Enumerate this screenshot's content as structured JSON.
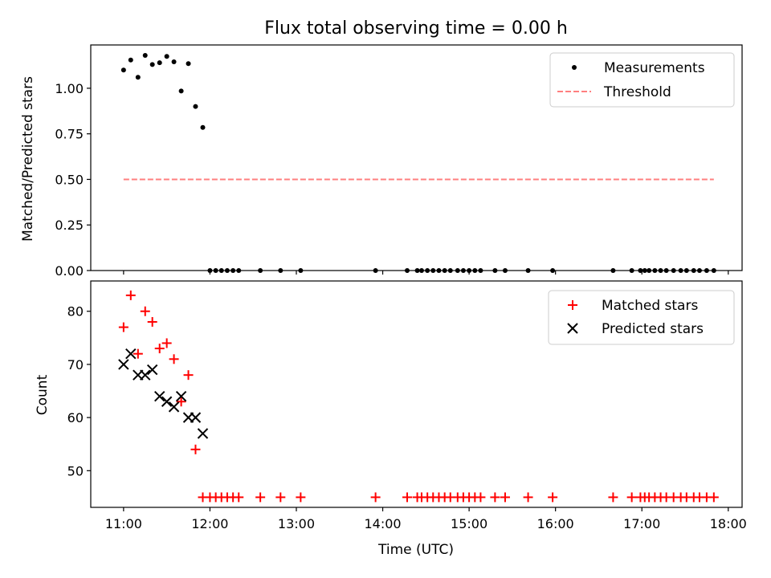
{
  "chart_data": [
    {
      "type": "scatter",
      "title": "Flux total observing time = 0.00 h",
      "ylabel": "Matched/Predicted stars",
      "xlabel": "",
      "xlim": [
        10.62,
        18.16
      ],
      "ylim": [
        0,
        1.2375
      ],
      "yticks": [
        0.0,
        0.25,
        0.5,
        0.75,
        1.0
      ],
      "ytick_labels": [
        "0.00",
        "0.25",
        "0.50",
        "0.75",
        "1.00"
      ],
      "xticks": [
        11,
        12,
        13,
        14,
        15,
        16,
        17,
        18
      ],
      "legend": "top-right",
      "legend_entries": [
        {
          "label": "Measurements",
          "color": "#000000",
          "marker": "dot"
        },
        {
          "label": "Threshold",
          "color": "#ff7f7f",
          "marker": "dashed-line"
        }
      ],
      "series": [
        {
          "name": "Measurements",
          "color": "#000000",
          "x": [
            11.0,
            11.083,
            11.167,
            11.25,
            11.333,
            11.417,
            11.5,
            11.583,
            11.667,
            11.75,
            11.833,
            11.917,
            12.0,
            12.067,
            12.133,
            12.2,
            12.267,
            12.333,
            12.583,
            12.817,
            13.05,
            13.917,
            14.283,
            14.4,
            14.45,
            14.517,
            14.583,
            14.65,
            14.717,
            14.783,
            14.867,
            14.933,
            15.0,
            15.067,
            15.133,
            15.3,
            15.417,
            15.683,
            15.967,
            16.667,
            16.883,
            16.983,
            17.033,
            17.083,
            17.15,
            17.217,
            17.283,
            17.367,
            17.45,
            17.517,
            17.6,
            17.667,
            17.75,
            17.833
          ],
          "y": [
            1.1,
            1.155,
            1.06,
            1.18,
            1.13,
            1.14,
            1.175,
            1.145,
            0.985,
            1.135,
            0.9,
            0.785,
            0,
            0,
            0,
            0,
            0,
            0,
            0,
            0,
            0,
            0,
            0,
            0,
            0,
            0,
            0,
            0,
            0,
            0,
            0,
            0,
            0,
            0,
            0,
            0,
            0,
            0,
            0,
            0,
            0,
            0,
            0,
            0,
            0,
            0,
            0,
            0,
            0,
            0,
            0,
            0,
            0,
            0
          ]
        },
        {
          "name": "Threshold",
          "color": "#ff7f7f",
          "x": [
            11.0,
            17.833
          ],
          "y": [
            0.5,
            0.5
          ]
        }
      ]
    },
    {
      "type": "scatter",
      "title": "",
      "ylabel": "Count",
      "xlabel": "Time (UTC)",
      "xlim": [
        10.62,
        18.16
      ],
      "ylim": [
        43.1,
        85.7
      ],
      "yticks": [
        50,
        60,
        70,
        80
      ],
      "ytick_labels": [
        "50",
        "60",
        "70",
        "80"
      ],
      "xticks": [
        11,
        12,
        13,
        14,
        15,
        16,
        17,
        18
      ],
      "xtick_labels": [
        "11:00",
        "12:00",
        "13:00",
        "14:00",
        "15:00",
        "16:00",
        "17:00",
        "18:00"
      ],
      "legend": "top-right",
      "legend_entries": [
        {
          "label": "Matched stars",
          "color": "#ff0000",
          "marker": "plus"
        },
        {
          "label": "Predicted stars",
          "color": "#000000",
          "marker": "x"
        }
      ],
      "series": [
        {
          "name": "Matched stars",
          "color": "#ff0000",
          "x": [
            11.0,
            11.083,
            11.167,
            11.25,
            11.333,
            11.417,
            11.5,
            11.583,
            11.667,
            11.75,
            11.833,
            11.917,
            12.0,
            12.067,
            12.133,
            12.2,
            12.267,
            12.333,
            12.583,
            12.817,
            13.05,
            13.917,
            14.283,
            14.4,
            14.45,
            14.517,
            14.583,
            14.65,
            14.717,
            14.783,
            14.867,
            14.933,
            15.0,
            15.067,
            15.133,
            15.3,
            15.417,
            15.683,
            15.967,
            16.667,
            16.883,
            16.983,
            17.033,
            17.083,
            17.15,
            17.217,
            17.283,
            17.367,
            17.45,
            17.517,
            17.6,
            17.667,
            17.75,
            17.833
          ],
          "y": [
            77,
            83,
            72,
            80,
            78,
            73,
            74,
            71,
            63,
            68,
            54,
            45,
            45,
            45,
            45,
            45,
            45,
            45,
            45,
            45,
            45,
            45,
            45,
            45,
            45,
            45,
            45,
            45,
            45,
            45,
            45,
            45,
            45,
            45,
            45,
            45,
            45,
            45,
            45,
            45,
            45,
            45,
            45,
            45,
            45,
            45,
            45,
            45,
            45,
            45,
            45,
            45,
            45,
            45
          ]
        },
        {
          "name": "Predicted stars",
          "color": "#000000",
          "x": [
            11.0,
            11.083,
            11.167,
            11.25,
            11.333,
            11.417,
            11.5,
            11.583,
            11.667,
            11.75,
            11.833,
            11.917
          ],
          "y": [
            70,
            72,
            68,
            68,
            69,
            64,
            63,
            62,
            64,
            60,
            60,
            57
          ]
        }
      ]
    }
  ]
}
